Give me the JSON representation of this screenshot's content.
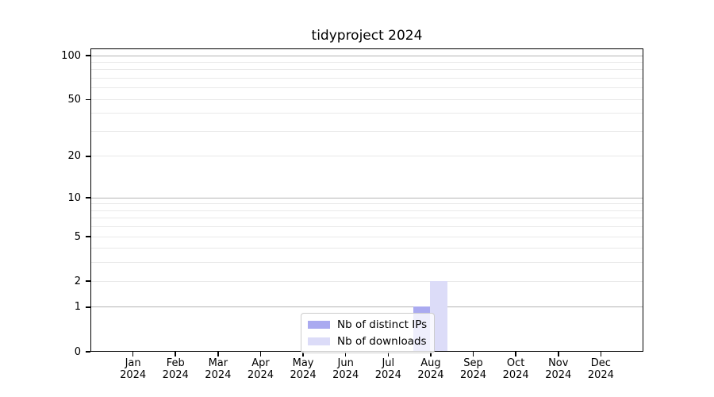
{
  "chart_data": {
    "type": "bar",
    "title": "tidyproject 2024",
    "categories": [
      {
        "month": "Jan",
        "year": "2024"
      },
      {
        "month": "Feb",
        "year": "2024"
      },
      {
        "month": "Mar",
        "year": "2024"
      },
      {
        "month": "Apr",
        "year": "2024"
      },
      {
        "month": "May",
        "year": "2024"
      },
      {
        "month": "Jun",
        "year": "2024"
      },
      {
        "month": "Jul",
        "year": "2024"
      },
      {
        "month": "Aug",
        "year": "2024"
      },
      {
        "month": "Sep",
        "year": "2024"
      },
      {
        "month": "Oct",
        "year": "2024"
      },
      {
        "month": "Nov",
        "year": "2024"
      },
      {
        "month": "Dec",
        "year": "2024"
      }
    ],
    "series": [
      {
        "name": "Nb of distinct IPs",
        "color": "#aaaaf0",
        "values": [
          0,
          0,
          0,
          0,
          0,
          0,
          0,
          1,
          0,
          0,
          0,
          0
        ]
      },
      {
        "name": "Nb of downloads",
        "color": "#dcdcf8",
        "values": [
          0,
          0,
          0,
          0,
          0,
          0,
          0,
          2,
          0,
          0,
          0,
          0
        ]
      }
    ],
    "xlabel": "",
    "ylabel": "",
    "y_scale": "log1p",
    "y_ticks": [
      0,
      1,
      2,
      5,
      10,
      20,
      50,
      100
    ],
    "y_major_gridlines": [
      1,
      10,
      100
    ],
    "y_minor_gridlines": [
      2,
      3,
      4,
      5,
      6,
      7,
      8,
      9,
      20,
      30,
      40,
      50,
      60,
      70,
      80,
      90
    ],
    "ylim": [
      0,
      112
    ],
    "grid": true,
    "legend_position": "lower center"
  },
  "colors": {
    "spine": "#000000",
    "grid_major": "#b4b4b4",
    "grid_minor": "#e9e9e9",
    "text": "#000000",
    "legend_border": "#cccccc"
  }
}
